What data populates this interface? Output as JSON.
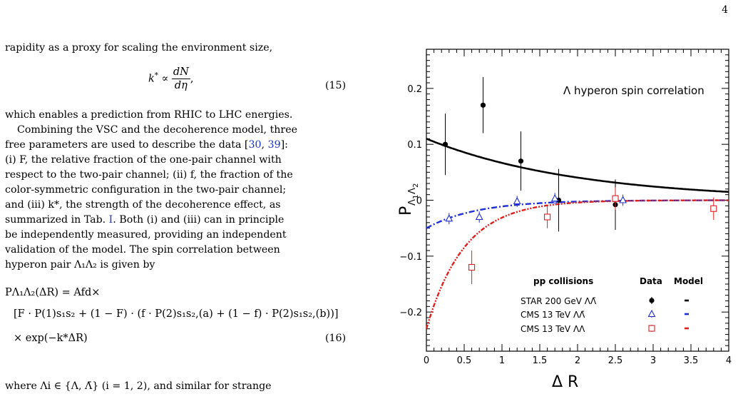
{
  "page_number": "4",
  "left": {
    "line1": "rapidity as a proxy for scaling the environment size,",
    "eq15_k": "k",
    "eq15_star": "*",
    "eq15_prop": " ∝ ",
    "eq15_num": "dN",
    "eq15_den": "dη",
    "eq15_comma": ",",
    "eq15_label": "(15)",
    "line_after": "which enables a prediction from RHIC to LHC energies.",
    "para2_l1_pre": "Combining the VSC and the decoherence model, three",
    "para2_l2_pre": "free parameters are used to describe the data [",
    "ref30": "30",
    "ref_sep": ", ",
    "ref39": "39",
    "para2_l2_post": "]:",
    "para2_l3": "(i) F, the relative fraction of the one-pair channel with",
    "para2_l4": "respect to the two-pair channel; (ii) f, the fraction of the",
    "para2_l5": "color-symmetric configuration in the two-pair channel;",
    "para2_l6": "and (iii) k*, the strength of the decoherence effect, as",
    "para2_l7_pre": "summarized in Tab. ",
    "tab_ref": "I",
    "para2_l7_post": ". Both (i) and (iii) can in principle",
    "para2_l8": "be independently measured, providing an independent",
    "para2_l9": "validation of the model. The spin correlation between",
    "para2_l10": "hyperon pair Λ₁Λ₂ is given by",
    "eq16_l1": "PΛ₁Λ₂(ΔR) = Afd×",
    "eq16_l2": "[F · P(1)s₁s₂ + (1 − F) · (f · P(2)s₁s₂,(a) + (1 − f) · P(2)s₁s₂,(b))]",
    "eq16_l3": "× exp(−k*ΔR)",
    "eq16_label": "(16)",
    "last_line": "where Λi ∈ {Λ, Λ̄} (i = 1, 2), and similar for strange"
  },
  "chart_data": {
    "type": "scatter",
    "title": "Λ hyperon spin correlation",
    "xlabel": "Δ R",
    "ylabel": "P Λ1 Λ2",
    "xlim": [
      0,
      4
    ],
    "ylim": [
      -0.27,
      0.27
    ],
    "xticks": [
      "0",
      "0.5",
      "1",
      "1.5",
      "2",
      "2.5",
      "3",
      "3.5",
      "4"
    ],
    "yticks": [
      "−0.2",
      "−0.1",
      "0",
      "0.1",
      "0.2"
    ],
    "legend": {
      "header": [
        "pp collisions",
        "Data",
        "Model"
      ],
      "entries": [
        "STAR 200 GeV ΛΛ̄",
        "CMS  13  TeV ΛΛ̄",
        "CMS  13  TeV ΛΛ"
      ],
      "placement": "bottom-right"
    },
    "series": [
      {
        "name": "STAR 200 GeV ΛΛ̄",
        "color": "#000000",
        "marker": "filled-circle",
        "x": [
          0.25,
          0.75,
          1.25,
          1.75,
          2.5
        ],
        "y": [
          0.1,
          0.17,
          0.07,
          0.0,
          -0.008
        ],
        "err": [
          0.055,
          0.05,
          0.053,
          0.056,
          0.045
        ],
        "model": {
          "style": "solid",
          "a": 0.11,
          "k": 0.5
        }
      },
      {
        "name": "CMS  13  TeV ΛΛ̄",
        "color": "#1f2fd6",
        "marker": "open-triangle",
        "x": [
          0.3,
          0.7,
          1.2,
          1.7,
          2.6
        ],
        "y": [
          -0.033,
          -0.03,
          -0.002,
          0.003,
          0.0
        ],
        "err": [
          0.01,
          0.01,
          0.01,
          0.01,
          0.01
        ],
        "model": {
          "style": "dashdot",
          "a": -0.05,
          "k": 1.5
        }
      },
      {
        "name": "CMS  13  TeV ΛΛ",
        "color": "#e01f1f",
        "marker": "open-square",
        "x": [
          0.6,
          1.6,
          2.5,
          3.8
        ],
        "y": [
          -0.12,
          -0.03,
          0.003,
          -0.015
        ],
        "err": [
          0.03,
          0.02,
          0.02,
          0.02
        ],
        "model": {
          "style": "dashdotdot",
          "a": -0.23,
          "k": 2.0
        }
      }
    ]
  }
}
